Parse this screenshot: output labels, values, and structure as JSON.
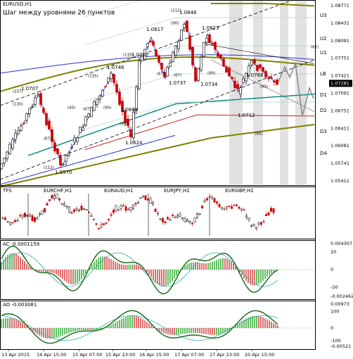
{
  "header": {
    "symbol": "EURUSD,H1",
    "note": "Шаг между уровнями 26 пунктов"
  },
  "main": {
    "price_scale": [
      "1.08771",
      "1.08431",
      "1.08091",
      "1.07751",
      "1.07421",
      "1.07091",
      "1.06751",
      "1.06411",
      "1.06081",
      "1.05741",
      "1.05411"
    ],
    "current_price": "1.07281",
    "levels": [
      "U3",
      "U2",
      "U1",
      "LB",
      "D1",
      "D2",
      "D3",
      "D4"
    ],
    "price_labels": [
      "1.0707",
      "1.0570",
      "1.0746",
      "1.0624",
      "1.0684",
      "1.0767",
      "1.0817",
      "1.0848",
      "1.0737",
      "1.0734",
      "1.0823",
      "1.0712",
      "1.0768"
    ],
    "counts": [
      "(157)",
      "(135)",
      "(67)",
      "(112)",
      "(45)",
      "(67)",
      "(90)",
      "(135)",
      "(135)",
      "(90)",
      "(67)",
      "(90)",
      "(112)",
      "(67)",
      "(90)",
      "(45)",
      "(90)",
      "(67)"
    ]
  },
  "tfs": {
    "title": "TFS",
    "symbols": [
      "EURCHF,H1",
      "EURAUD,H1",
      "EURJPY,H1",
      "EURGBP,H1"
    ]
  },
  "ac": {
    "title": "AC -0.0001159",
    "scale": [
      "0.004307",
      "20",
      "0",
      "-20",
      "-0.002462"
    ]
  },
  "ao": {
    "title": "AO -0.003081",
    "scale": [
      "0.00973",
      "100",
      "0",
      "-100",
      "-0.00521"
    ]
  },
  "time_axis": [
    "13 Apr 2015",
    "14 Apr 15:00",
    "15 Apr 07:00",
    "15 Apr 23:00",
    "16 Apr 15:00",
    "17 Apr 07:00",
    "17 Apr 23:00",
    "20 Apr 15:00"
  ]
}
